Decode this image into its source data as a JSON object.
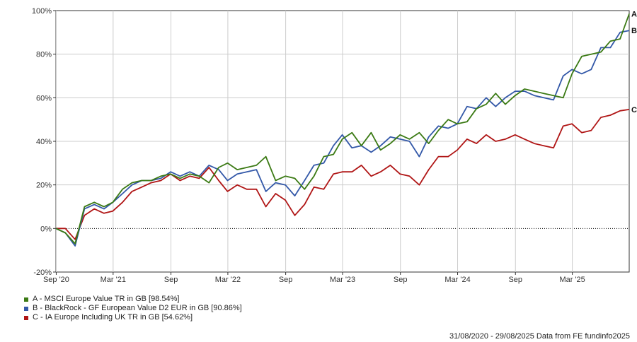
{
  "chart_data": {
    "type": "line",
    "ylim": [
      -20,
      100
    ],
    "y_ticks": [
      "100%",
      "80%",
      "60%",
      "40%",
      "20%",
      "0%",
      "-20%"
    ],
    "y_tick_values": [
      100,
      80,
      60,
      40,
      20,
      0,
      -20
    ],
    "x_ticks": [
      "Sep '20",
      "Mar '21",
      "Sep",
      "Mar '22",
      "Sep",
      "Mar '23",
      "Sep",
      "Mar '24",
      "Sep",
      "Mar '25"
    ],
    "x_range": [
      "2020-08-31",
      "2025-08-29"
    ],
    "x_tick_dates": [
      "2020-09-01",
      "2021-03-01",
      "2021-09-01",
      "2022-03-01",
      "2022-09-01",
      "2023-03-01",
      "2023-09-01",
      "2024-03-01",
      "2024-09-01",
      "2025-03-01"
    ],
    "grid": true,
    "zero_line": "dotted",
    "legend_placement": "bottom-left",
    "x": [
      "2020-08-31",
      "2020-09-30",
      "2020-10-31",
      "2020-11-30",
      "2020-12-31",
      "2021-01-31",
      "2021-02-28",
      "2021-03-31",
      "2021-04-30",
      "2021-05-31",
      "2021-06-30",
      "2021-07-31",
      "2021-08-31",
      "2021-09-30",
      "2021-10-31",
      "2021-11-30",
      "2021-12-31",
      "2022-01-31",
      "2022-02-28",
      "2022-03-31",
      "2022-04-30",
      "2022-05-31",
      "2022-06-30",
      "2022-07-31",
      "2022-08-31",
      "2022-09-30",
      "2022-10-31",
      "2022-11-30",
      "2022-12-31",
      "2023-01-31",
      "2023-02-28",
      "2023-03-31",
      "2023-04-30",
      "2023-05-31",
      "2023-06-30",
      "2023-07-31",
      "2023-08-31",
      "2023-09-30",
      "2023-10-31",
      "2023-11-30",
      "2023-12-31",
      "2024-01-31",
      "2024-02-29",
      "2024-03-31",
      "2024-04-30",
      "2024-05-31",
      "2024-06-30",
      "2024-07-31",
      "2024-08-31",
      "2024-09-30",
      "2024-10-31",
      "2024-11-30",
      "2024-12-31",
      "2025-01-31",
      "2025-02-28",
      "2025-03-31",
      "2025-04-30",
      "2025-05-31",
      "2025-06-30",
      "2025-07-31",
      "2025-08-29"
    ],
    "series": [
      {
        "name": "A - MSCI Europe Value TR in GB [98.54%]",
        "end_label": "A",
        "color": "#3b7a14",
        "values": [
          0,
          -2,
          -7,
          10,
          12,
          10,
          12,
          18,
          21,
          22,
          22,
          24,
          25,
          23,
          25,
          24,
          21,
          28,
          30,
          27,
          28,
          29,
          33,
          22,
          24,
          23,
          18,
          24,
          33,
          34,
          41,
          44,
          38,
          44,
          36,
          39,
          43,
          41,
          44,
          39,
          45,
          50,
          48,
          49,
          55,
          57,
          62,
          57,
          61,
          64,
          63,
          62,
          61,
          60,
          71,
          79,
          80,
          81,
          86,
          87,
          98.54
        ]
      },
      {
        "name": "B - BlackRock - GF European Value D2 EUR in GB [90.86%]",
        "end_label": "B",
        "color": "#3358a8",
        "values": [
          0,
          -2,
          -8,
          9,
          11,
          9,
          12,
          16,
          20,
          22,
          22,
          23,
          26,
          24,
          26,
          24,
          29,
          27,
          22,
          25,
          26,
          27,
          17,
          21,
          20,
          15,
          22,
          29,
          30,
          38,
          43,
          37,
          38,
          35,
          38,
          42,
          41,
          40,
          33,
          42,
          47,
          46,
          48,
          56,
          55,
          60,
          56,
          60,
          63,
          63,
          61,
          60,
          59,
          70,
          73,
          71,
          73,
          83,
          83,
          90,
          90.86
        ]
      },
      {
        "name": "C - IA Europe Including UK TR in GB [54.62%]",
        "end_label": "C",
        "color": "#b01515",
        "values": [
          0,
          0,
          -5,
          6,
          9,
          7,
          8,
          12,
          17,
          19,
          21,
          22,
          25,
          22,
          24,
          23,
          28,
          22,
          17,
          20,
          18,
          18,
          10,
          16,
          13,
          6,
          11,
          19,
          18,
          25,
          26,
          26,
          29,
          24,
          26,
          29,
          25,
          24,
          20,
          27,
          33,
          33,
          36,
          41,
          39,
          43,
          40,
          41,
          43,
          41,
          39,
          38,
          37,
          47,
          48,
          44,
          45,
          51,
          52,
          54,
          54.62
        ]
      }
    ]
  },
  "footer": {
    "date_range": "31/08/2020 - 29/08/2025",
    "source": "Data from FE fundinfo2025"
  }
}
